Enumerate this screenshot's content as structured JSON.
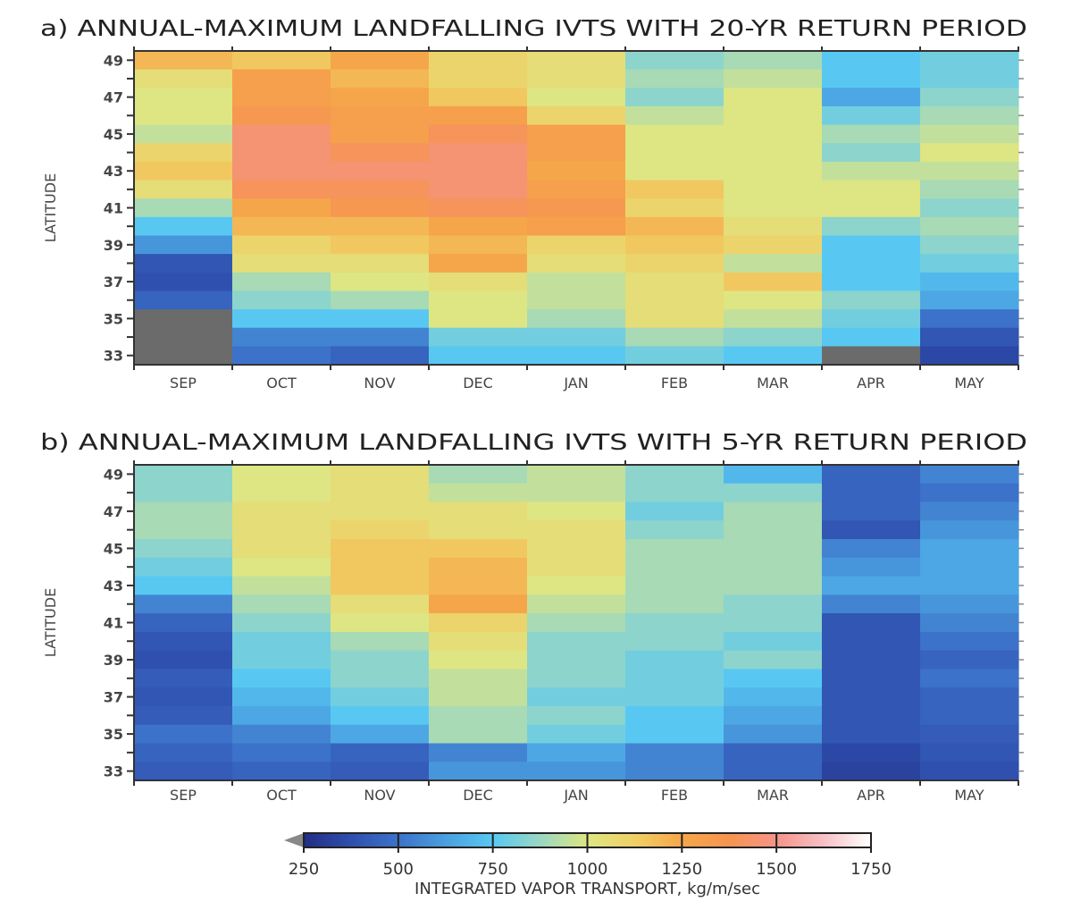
{
  "chart_data": [
    {
      "type": "heatmap",
      "title": "a) ANNUAL-MAXIMUM  LANDFALLING IVTS WITH 20-YR RETURN PERIOD",
      "xlabel": "",
      "ylabel": "LATITUDE",
      "categories": [
        "SEP",
        "OCT",
        "NOV",
        "DEC",
        "JAN",
        "FEB",
        "MAR",
        "APR",
        "MAY"
      ],
      "y": [
        49,
        48,
        47,
        46,
        45,
        44,
        43,
        42,
        41,
        40,
        39,
        38,
        37,
        36,
        35,
        34,
        33
      ],
      "ytick_labels": [
        "49",
        "47",
        "45",
        "43",
        "41",
        "39",
        "37",
        "35",
        "33"
      ],
      "ylim": [
        32.5,
        49.5
      ],
      "missing_color": "#6b6b6b",
      "values": [
        [
          1200,
          1050,
          1000,
          1000,
          950,
          1100,
          1150,
          1050,
          900,
          750,
          600,
          400,
          380,
          450,
          null,
          null,
          null
        ],
        [
          1150,
          1300,
          1300,
          1350,
          1450,
          1450,
          1450,
          1400,
          1250,
          1200,
          1100,
          1050,
          900,
          850,
          750,
          550,
          500
        ],
        [
          1250,
          1200,
          1250,
          1300,
          1300,
          1400,
          1450,
          1400,
          1350,
          1200,
          1150,
          1050,
          1000,
          900,
          750,
          550,
          450
        ],
        [
          1100,
          1100,
          1150,
          1300,
          1400,
          1450,
          1450,
          1450,
          1400,
          1250,
          1200,
          1250,
          1050,
          1000,
          1000,
          800,
          750
        ],
        [
          1050,
          1050,
          1000,
          1100,
          1300,
          1300,
          1250,
          1300,
          1350,
          1300,
          1100,
          1050,
          950,
          950,
          900,
          800,
          750
        ],
        [
          850,
          900,
          850,
          950,
          1000,
          1000,
          1000,
          1150,
          1100,
          1200,
          1150,
          1100,
          1050,
          1050,
          1050,
          900,
          800
        ],
        [
          900,
          950,
          1000,
          1000,
          1000,
          1000,
          1000,
          1000,
          1000,
          1050,
          1100,
          950,
          1150,
          1000,
          950,
          850,
          750
        ],
        [
          750,
          750,
          650,
          800,
          900,
          850,
          950,
          1000,
          1000,
          850,
          750,
          750,
          750,
          850,
          800,
          750,
          null
        ],
        [
          800,
          800,
          850,
          900,
          950,
          1000,
          950,
          900,
          850,
          900,
          850,
          800,
          700,
          650,
          500,
          400,
          350
        ]
      ]
    },
    {
      "type": "heatmap",
      "title": "b) ANNUAL-MAXIMUM  LANDFALLING IVTS WITH 5-YR RETURN PERIOD",
      "xlabel": "",
      "ylabel": "LATITUDE",
      "categories": [
        "SEP",
        "OCT",
        "NOV",
        "DEC",
        "JAN",
        "FEB",
        "MAR",
        "APR",
        "MAY"
      ],
      "y": [
        49,
        48,
        47,
        46,
        45,
        44,
        43,
        42,
        41,
        40,
        39,
        38,
        37,
        36,
        35,
        34,
        33
      ],
      "ytick_labels": [
        "49",
        "47",
        "45",
        "43",
        "41",
        "39",
        "37",
        "35",
        "33"
      ],
      "ylim": [
        32.5,
        49.5
      ],
      "values": [
        [
          850,
          850,
          900,
          900,
          850,
          800,
          750,
          550,
          450,
          400,
          380,
          420,
          400,
          420,
          500,
          450,
          420
        ],
        [
          1000,
          1000,
          1050,
          1050,
          1050,
          1000,
          950,
          900,
          850,
          800,
          800,
          750,
          700,
          650,
          550,
          500,
          450
        ],
        [
          1050,
          1050,
          1050,
          1100,
          1150,
          1150,
          1150,
          1050,
          1000,
          900,
          850,
          850,
          800,
          750,
          650,
          450,
          420
        ],
        [
          900,
          950,
          1050,
          1050,
          1150,
          1200,
          1200,
          1250,
          1100,
          1050,
          1000,
          950,
          950,
          900,
          900,
          550,
          600
        ],
        [
          950,
          950,
          1000,
          1050,
          1050,
          1050,
          1000,
          950,
          900,
          850,
          850,
          850,
          800,
          850,
          800,
          650,
          600
        ],
        [
          850,
          850,
          800,
          850,
          900,
          900,
          900,
          900,
          850,
          850,
          800,
          800,
          800,
          750,
          750,
          550,
          550
        ],
        [
          700,
          850,
          900,
          900,
          900,
          900,
          900,
          850,
          850,
          800,
          850,
          750,
          700,
          650,
          600,
          450,
          450
        ],
        [
          450,
          450,
          450,
          400,
          550,
          600,
          650,
          550,
          400,
          400,
          400,
          400,
          400,
          400,
          400,
          350,
          330
        ],
        [
          550,
          500,
          550,
          600,
          650,
          650,
          650,
          600,
          550,
          500,
          450,
          500,
          450,
          450,
          420,
          400,
          380
        ]
      ]
    }
  ],
  "colorbar": {
    "label": "INTEGRATED VAPOR TRANSPORT, kg/m/sec",
    "ticks": [
      "250",
      "500",
      "750",
      "1000",
      "1250",
      "1500",
      "1750"
    ],
    "range": [
      250,
      1750
    ],
    "extend": "min",
    "stops": [
      {
        "v": 250,
        "c": "#222d85"
      },
      {
        "v": 375,
        "c": "#2f4fae"
      },
      {
        "v": 500,
        "c": "#3c72c9"
      },
      {
        "v": 625,
        "c": "#4a9fe0"
      },
      {
        "v": 750,
        "c": "#58c8f2"
      },
      {
        "v": 875,
        "c": "#9ad7c2"
      },
      {
        "v": 1000,
        "c": "#dde682"
      },
      {
        "v": 1125,
        "c": "#f0d066"
      },
      {
        "v": 1250,
        "c": "#f6a64a"
      },
      {
        "v": 1375,
        "c": "#f69450"
      },
      {
        "v": 1500,
        "c": "#f59488"
      },
      {
        "v": 1625,
        "c": "#f7c0c6"
      },
      {
        "v": 1750,
        "c": "#ffffff"
      }
    ]
  }
}
